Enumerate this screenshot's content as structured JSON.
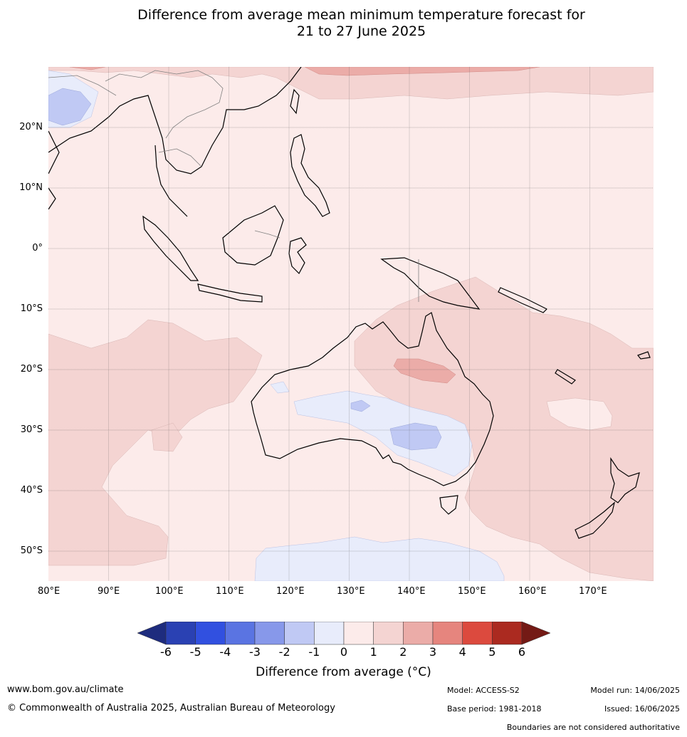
{
  "title": {
    "line1": "Difference from average mean minimum temperature forecast for",
    "line2": "21 to 27 June 2025"
  },
  "map": {
    "latitude_labels": [
      "20°N",
      "10°N",
      "0°",
      "10°S",
      "20°S",
      "30°S",
      "40°S",
      "50°S"
    ],
    "longitude_labels": [
      "80°E",
      "90°E",
      "100°E",
      "110°E",
      "120°E",
      "130°E",
      "140°E",
      "150°E",
      "160°E",
      "170°E"
    ]
  },
  "legend": {
    "ticks": [
      "-6",
      "-5",
      "-4",
      "-3",
      "-2",
      "-1",
      "0",
      "1",
      "2",
      "3",
      "4",
      "5",
      "6"
    ],
    "colors": [
      "#1e2c7e",
      "#2a41b3",
      "#3150e0",
      "#5a74e2",
      "#8798ea",
      "#c0c9f4",
      "#e8ecfb",
      "#fcebea",
      "#f4d4d2",
      "#ebaca8",
      "#e6857e",
      "#dc4a3e",
      "#ab2a20",
      "#741a15"
    ],
    "label": "Difference from average (°C)"
  },
  "footer": {
    "website": "www.bom.gov.au/climate",
    "copyright": "© Commonwealth of Australia 2025, Australian Bureau of Meteorology",
    "model": "Model: ACCESS-S2",
    "base_period": "Base period: 1981-2018",
    "model_run": "Model run: 14/06/2025",
    "issued": "Issued: 16/06/2025",
    "disclaimer": "Boundaries are not considered authoritative"
  }
}
